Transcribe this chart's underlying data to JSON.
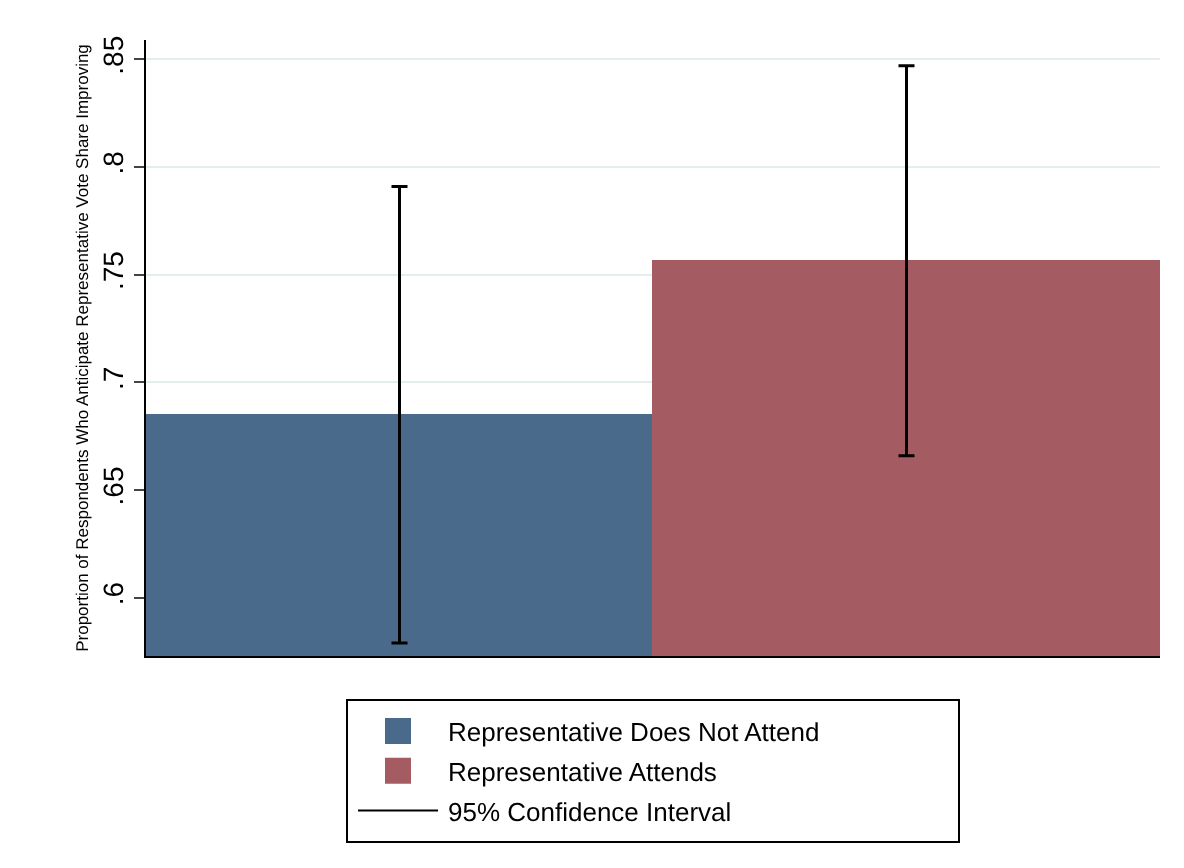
{
  "chart_data": {
    "type": "bar",
    "ylabel": "Proportion of Respondents Who Anticipate Representative Vote Share Improving",
    "categories": [
      null,
      null
    ],
    "series": [
      {
        "name": "Representative Does Not Attend",
        "color": "#4a6a8c",
        "values": [
          0.6845,
          null
        ],
        "errors": [
          [
            0.579,
            0.791
          ],
          null
        ]
      },
      {
        "name": "Representative Attends",
        "color": "#a45c62",
        "values": [
          null,
          0.756
        ],
        "errors": [
          null,
          [
            0.666,
            0.847
          ]
        ]
      }
    ],
    "annotations": [
      "95% Confidence Interval"
    ],
    "ylim": [
      0.573,
      0.859
    ],
    "yticks": [
      {
        "value": 0.6,
        "label": ".6"
      },
      {
        "value": 0.65,
        "label": ".65"
      },
      {
        "value": 0.7,
        "label": ".7"
      },
      {
        "value": 0.75,
        "label": ".75"
      },
      {
        "value": 0.8,
        "label": ".8"
      },
      {
        "value": 0.85,
        "label": ".85"
      }
    ],
    "grid": "y",
    "legend": "bottom",
    "tick_labels": "y"
  }
}
